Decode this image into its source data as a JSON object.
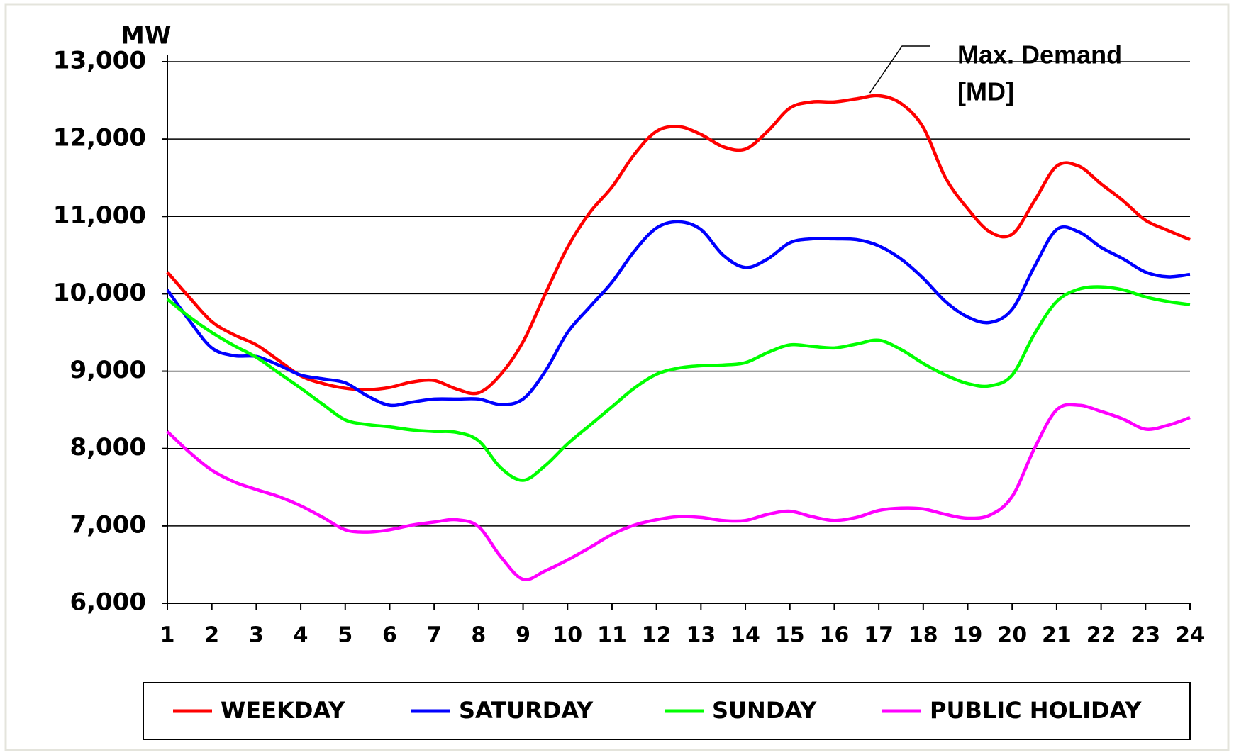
{
  "chart_data": {
    "type": "line",
    "y_label": "MW",
    "annotation": [
      "Max. Demand",
      "[MD]"
    ],
    "x": [
      1,
      1.5,
      2,
      2.5,
      3,
      3.5,
      4,
      4.5,
      5,
      5.5,
      6,
      6.5,
      7,
      7.5,
      8,
      8.5,
      9,
      9.5,
      10,
      10.5,
      11,
      11.5,
      12,
      12.5,
      13,
      13.5,
      14,
      14.5,
      15,
      15.5,
      16,
      16.5,
      17,
      17.5,
      18,
      18.5,
      19,
      19.5,
      20,
      20.5,
      21,
      21.5,
      22,
      22.5,
      23,
      23.5,
      24
    ],
    "series": [
      {
        "name": "WEEKDAY",
        "color": "#ff0000",
        "values": [
          10280,
          9950,
          9640,
          9470,
          9340,
          9140,
          8940,
          8840,
          8780,
          8760,
          8790,
          8860,
          8880,
          8770,
          8720,
          8960,
          9380,
          10000,
          10600,
          11050,
          11380,
          11800,
          12100,
          12160,
          12060,
          11900,
          11870,
          12100,
          12400,
          12480,
          12480,
          12520,
          12560,
          12460,
          12150,
          11500,
          11100,
          10800,
          10770,
          11200,
          11650,
          11650,
          11420,
          11200,
          10950,
          10820,
          10700
        ]
      },
      {
        "name": "SATURDAY",
        "color": "#0000ff",
        "values": [
          10050,
          9650,
          9300,
          9200,
          9190,
          9080,
          8950,
          8900,
          8850,
          8680,
          8560,
          8600,
          8640,
          8640,
          8640,
          8570,
          8640,
          9000,
          9500,
          9830,
          10150,
          10550,
          10850,
          10930,
          10830,
          10500,
          10340,
          10450,
          10660,
          10710,
          10710,
          10700,
          10620,
          10450,
          10200,
          9900,
          9700,
          9630,
          9800,
          10350,
          10830,
          10800,
          10600,
          10450,
          10280,
          10220,
          10250
        ]
      },
      {
        "name": "SUNDAY",
        "color": "#00ff00",
        "values": [
          9930,
          9700,
          9500,
          9330,
          9180,
          8980,
          8780,
          8570,
          8370,
          8310,
          8280,
          8240,
          8220,
          8210,
          8100,
          7750,
          7590,
          7780,
          8060,
          8300,
          8540,
          8780,
          8960,
          9040,
          9070,
          9080,
          9110,
          9240,
          9340,
          9320,
          9300,
          9350,
          9400,
          9280,
          9100,
          8950,
          8840,
          8810,
          8950,
          9480,
          9900,
          10060,
          10090,
          10050,
          9960,
          9900,
          9860
        ]
      },
      {
        "name": "PUBLIC HOLIDAY",
        "color": "#ff00ff",
        "values": [
          8220,
          7950,
          7720,
          7570,
          7470,
          7380,
          7260,
          7110,
          6950,
          6920,
          6950,
          7010,
          7050,
          7080,
          6990,
          6600,
          6310,
          6420,
          6560,
          6720,
          6890,
          7010,
          7080,
          7120,
          7110,
          7070,
          7070,
          7150,
          7190,
          7120,
          7070,
          7110,
          7200,
          7230,
          7220,
          7150,
          7100,
          7140,
          7380,
          8000,
          8500,
          8560,
          8480,
          8380,
          8250,
          8300,
          8400
        ]
      }
    ],
    "xlim": [
      1,
      24
    ],
    "xticks": [
      1,
      2,
      3,
      4,
      5,
      6,
      7,
      8,
      9,
      10,
      11,
      12,
      13,
      14,
      15,
      16,
      17,
      18,
      19,
      20,
      21,
      22,
      23,
      24
    ],
    "ylim": [
      6000,
      13000
    ],
    "yticks": [
      {
        "value": 6000,
        "label": "6,000"
      },
      {
        "value": 7000,
        "label": "7,000"
      },
      {
        "value": 8000,
        "label": "8,000"
      },
      {
        "value": 9000,
        "label": "9,000"
      },
      {
        "value": 10000,
        "label": "10,000"
      },
      {
        "value": 11000,
        "label": "11,000"
      },
      {
        "value": 12000,
        "label": "12,000"
      },
      {
        "value": 13000,
        "label": "13,000"
      }
    ],
    "grid": true,
    "legend": "bottom"
  }
}
